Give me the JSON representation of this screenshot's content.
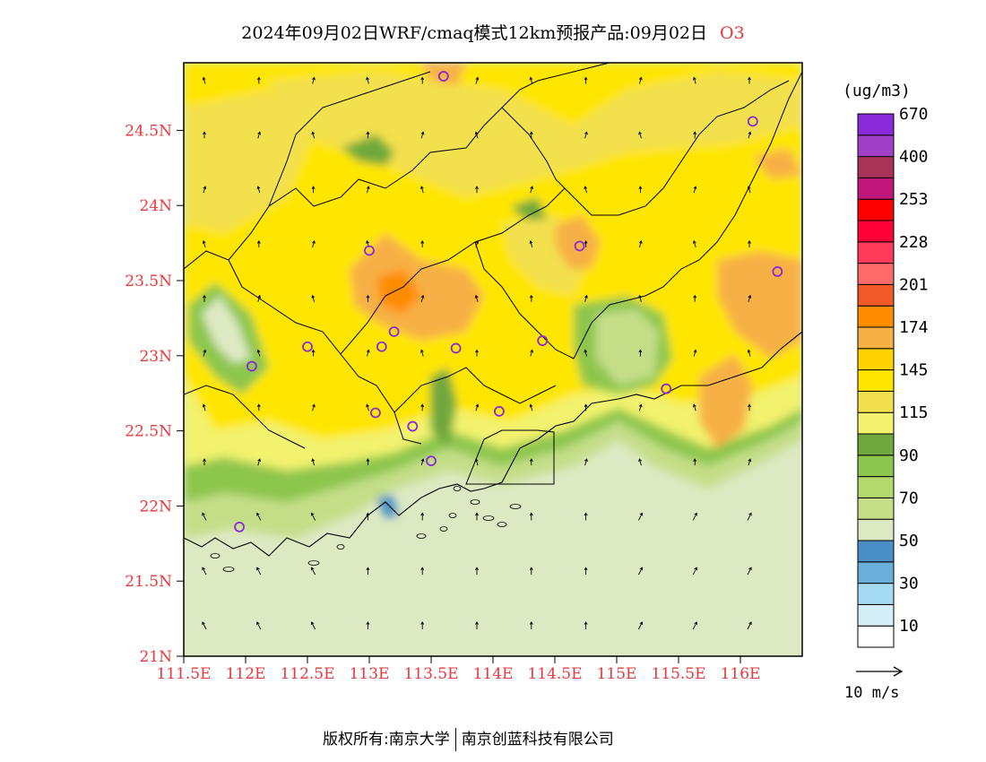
{
  "title": {
    "text": "2024年09月02日WRF/cmaq模式12km预报产品:09月02日",
    "pollutant": "O3"
  },
  "map": {
    "lon_range": [
      111.5,
      116.5
    ],
    "lat_range": [
      21.0,
      24.95
    ],
    "x_tick_labels": [
      "111.5E",
      "112E",
      "112.5E",
      "113E",
      "113.5E",
      "114E",
      "114.5E",
      "115E",
      "115.5E",
      "116E"
    ],
    "y_tick_labels": [
      "21N",
      "21.5N",
      "22N",
      "22.5N",
      "23N",
      "23.5N",
      "24N",
      "24.5N"
    ],
    "tick_label_color": "#e8383d",
    "sea_color": "#dde9c2",
    "stations": [
      [
        113.6,
        24.86
      ],
      [
        116.1,
        24.56
      ],
      [
        114.7,
        23.73
      ],
      [
        116.3,
        23.56
      ],
      [
        113.0,
        23.7
      ],
      [
        113.2,
        23.16
      ],
      [
        113.1,
        23.06
      ],
      [
        112.5,
        23.06
      ],
      [
        112.05,
        22.93
      ],
      [
        113.7,
        23.05
      ],
      [
        114.4,
        23.1
      ],
      [
        113.05,
        22.62
      ],
      [
        113.35,
        22.53
      ],
      [
        114.05,
        22.63
      ],
      [
        115.4,
        22.78
      ],
      [
        113.5,
        22.3
      ],
      [
        111.95,
        21.86
      ]
    ]
  },
  "colorbar": {
    "unit": "(ug/m3)",
    "colors": [
      "#ffffff",
      "#d6eef8",
      "#a4daf2",
      "#6aafd9",
      "#4a8ec6",
      "#dde9c2",
      "#c4de88",
      "#b3d86b",
      "#8dc64e",
      "#6fa83c",
      "#f2f26e",
      "#f3e04e",
      "#ffe600",
      "#ffd200",
      "#f7b044",
      "#ff8c00",
      "#f05a28",
      "#ff6a6a",
      "#ff3a5a",
      "#ff0038",
      "#ff0000",
      "#c0187a",
      "#a83258",
      "#a040c8",
      "#8a2ad8"
    ],
    "labels": [
      "10",
      "30",
      "50",
      "70",
      "90",
      "115",
      "145",
      "174",
      "201",
      "228",
      "253",
      "400",
      "670"
    ]
  },
  "wind": {
    "scale_label": "10 m/s"
  },
  "footer": {
    "left": "版权所有:南京大学",
    "right": "南京创蓝科技有限公司"
  }
}
